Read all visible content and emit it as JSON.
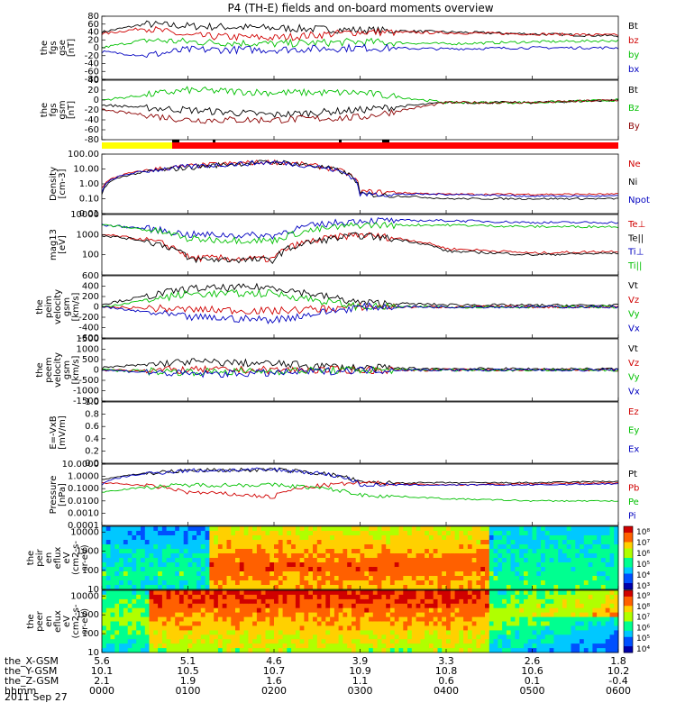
{
  "title": "P4 (TH-E) fields and on-board moments overview",
  "chart_data": [
    {
      "type": "line",
      "ylabel": [
        "the",
        "fgs",
        "gse",
        "[nT]"
      ],
      "ylim": [
        -80,
        80
      ],
      "yticks": [
        "80",
        "60",
        "40",
        "20",
        "0",
        "-20",
        "-40",
        "-60",
        "-80"
      ],
      "series": [
        {
          "name": "Bt",
          "color": "#000000",
          "x": [
            0,
            5,
            10,
            20,
            30,
            40,
            50,
            60
          ],
          "y": [
            40,
            60,
            55,
            50,
            45,
            40,
            35,
            30
          ]
        },
        {
          "name": "bz",
          "color": "#d00000",
          "x": [
            0,
            5,
            10,
            20,
            30,
            40,
            50,
            60
          ],
          "y": [
            35,
            50,
            30,
            25,
            40,
            38,
            35,
            32
          ]
        },
        {
          "name": "by",
          "color": "#00c000",
          "x": [
            0,
            5,
            10,
            20,
            30,
            40,
            50,
            60
          ],
          "y": [
            0,
            20,
            15,
            10,
            15,
            10,
            15,
            18
          ]
        },
        {
          "name": "bx",
          "color": "#0000c0",
          "x": [
            0,
            5,
            10,
            20,
            30,
            40,
            50,
            60
          ],
          "y": [
            -10,
            -20,
            -5,
            -5,
            0,
            -3,
            0,
            0
          ]
        }
      ]
    },
    {
      "type": "line",
      "ylabel": [
        "the",
        "fgs",
        "gsm",
        "[nT]"
      ],
      "ylim": [
        -80,
        40
      ],
      "yticks": [
        "40",
        "20",
        "0",
        "-20",
        "-40",
        "-60",
        "-80"
      ],
      "series": [
        {
          "name": "Bt",
          "color": "#000000",
          "x": [
            0,
            10,
            20,
            30,
            40,
            50,
            60
          ],
          "y": [
            -10,
            -20,
            -30,
            -20,
            -5,
            -5,
            0
          ]
        },
        {
          "name": "Bz",
          "color": "#00c000",
          "x": [
            0,
            10,
            20,
            30,
            40,
            50,
            60
          ],
          "y": [
            0,
            20,
            15,
            15,
            -5,
            -5,
            0
          ]
        },
        {
          "name": "By",
          "color": "#8b0000",
          "x": [
            0,
            10,
            20,
            30,
            40,
            50,
            60
          ],
          "y": [
            -20,
            -40,
            -40,
            -35,
            -5,
            -5,
            0
          ]
        }
      ]
    },
    {
      "type": "line",
      "ylabel": [
        "Density",
        "[cm-3]"
      ],
      "yscale": "log",
      "ylim": [
        0.01,
        100
      ],
      "yticks": [
        "100.00",
        "10.00",
        "1.00",
        "0.10",
        "0.01"
      ],
      "series": [
        {
          "name": "Ne",
          "color": "#d00000",
          "x": [
            0,
            10,
            20,
            30,
            40,
            50,
            60
          ],
          "y": [
            0.5,
            15,
            30,
            0.3,
            0.2,
            0.2,
            0.2
          ]
        },
        {
          "name": "Ni",
          "color": "#000000",
          "x": [
            0,
            10,
            20,
            30,
            40,
            50,
            60
          ],
          "y": [
            0.2,
            12,
            30,
            0.2,
            0.1,
            0.1,
            0.1
          ]
        },
        {
          "name": "Npot",
          "color": "#0000c0",
          "x": [
            0,
            10,
            20,
            30,
            40,
            50,
            60
          ],
          "y": [
            0.3,
            14,
            28,
            0.2,
            0.2,
            0.15,
            0.15
          ]
        }
      ]
    },
    {
      "type": "line",
      "ylabel": [
        "mag13",
        "[eV]"
      ],
      "yscale": "log",
      "ylim": [
        10,
        10000
      ],
      "yticks": [
        "10000",
        "1000",
        "100"
      ],
      "series": [
        {
          "name": "Te⊥",
          "color": "#d00000",
          "x": [
            0,
            10,
            20,
            30,
            40,
            50,
            60
          ],
          "y": [
            1000,
            70,
            60,
            1000,
            200,
            120,
            150
          ]
        },
        {
          "name": "Te||",
          "color": "#000000",
          "x": [
            0,
            10,
            20,
            30,
            40,
            50,
            60
          ],
          "y": [
            900,
            60,
            55,
            900,
            150,
            100,
            120
          ]
        },
        {
          "name": "Ti⊥",
          "color": "#0000c0",
          "x": [
            0,
            10,
            20,
            30,
            40,
            50,
            60
          ],
          "y": [
            3000,
            1000,
            900,
            5000,
            5000,
            4000,
            4000
          ]
        },
        {
          "name": "Ti||",
          "color": "#00c000",
          "x": [
            0,
            10,
            20,
            30,
            40,
            50,
            60
          ],
          "y": [
            3000,
            600,
            500,
            3000,
            3000,
            2500,
            2500
          ]
        }
      ]
    },
    {
      "type": "line",
      "ylabel": [
        "the",
        "peim",
        "velocity",
        "gsm",
        "[km/s]"
      ],
      "ylim": [
        -600,
        600
      ],
      "yticks": [
        "600",
        "400",
        "200",
        "0",
        "-200",
        "-400",
        "-600"
      ],
      "series": [
        {
          "name": "Vt",
          "color": "#000000",
          "x": [
            0,
            10,
            20,
            30,
            40,
            50,
            60
          ],
          "y": [
            50,
            350,
            380,
            80,
            40,
            30,
            30
          ]
        },
        {
          "name": "Vz",
          "color": "#d00000",
          "x": [
            0,
            10,
            20,
            30,
            40,
            50,
            60
          ],
          "y": [
            0,
            -50,
            -80,
            0,
            0,
            0,
            0
          ]
        },
        {
          "name": "Vy",
          "color": "#00c000",
          "x": [
            0,
            10,
            20,
            30,
            40,
            50,
            60
          ],
          "y": [
            0,
            250,
            260,
            0,
            0,
            0,
            0
          ]
        },
        {
          "name": "Vx",
          "color": "#0000c0",
          "x": [
            0,
            10,
            20,
            30,
            40,
            50,
            60
          ],
          "y": [
            0,
            -200,
            -250,
            0,
            0,
            0,
            0
          ]
        }
      ]
    },
    {
      "type": "line",
      "ylabel": [
        "the",
        "peem",
        "velocity",
        "gsm",
        "[km/s]"
      ],
      "ylim": [
        -1500,
        1500
      ],
      "yticks": [
        "1500",
        "1000",
        "500",
        "0",
        "-500",
        "-1000",
        "-1500"
      ],
      "series": [
        {
          "name": "Vt",
          "color": "#000000",
          "x": [
            0,
            10,
            20,
            30,
            40,
            50,
            60
          ],
          "y": [
            100,
            400,
            300,
            100,
            60,
            50,
            50
          ]
        },
        {
          "name": "Vz",
          "color": "#d00000",
          "x": [
            0,
            10,
            20,
            30,
            40,
            50,
            60
          ],
          "y": [
            0,
            0,
            0,
            0,
            0,
            0,
            0
          ]
        },
        {
          "name": "Vy",
          "color": "#00c000",
          "x": [
            0,
            10,
            20,
            30,
            40,
            50,
            60
          ],
          "y": [
            0,
            -100,
            -50,
            0,
            0,
            0,
            0
          ]
        },
        {
          "name": "Vx",
          "color": "#0000c0",
          "x": [
            0,
            10,
            20,
            30,
            40,
            50,
            60
          ],
          "y": [
            0,
            -200,
            -150,
            0,
            0,
            0,
            0
          ]
        }
      ]
    },
    {
      "type": "line",
      "ylabel": [
        "E=-VxB",
        "[mV/m]"
      ],
      "ylim": [
        0,
        1
      ],
      "yticks": [
        "1.0",
        "0.8",
        "0.6",
        "0.4",
        "0.2",
        "0.0"
      ],
      "series": [
        {
          "name": "Ez",
          "color": "#d00000"
        },
        {
          "name": "Ey",
          "color": "#00c000"
        },
        {
          "name": "Ex",
          "color": "#0000c0"
        }
      ]
    },
    {
      "type": "line",
      "ylabel": [
        "Pressure",
        "[nPa]"
      ],
      "yscale": "log",
      "ylim": [
        0.0001,
        10
      ],
      "yticks": [
        "10.0000",
        "1.0000",
        "0.1000",
        "0.0100",
        "0.0010",
        "0.0001"
      ],
      "series": [
        {
          "name": "Pt",
          "color": "#000000",
          "x": [
            0,
            10,
            20,
            30,
            40,
            50,
            60
          ],
          "y": [
            0.5,
            3,
            3.5,
            0.3,
            0.3,
            0.3,
            0.4
          ]
        },
        {
          "name": "Pb",
          "color": "#d00000",
          "x": [
            0,
            10,
            20,
            30,
            40,
            50,
            60
          ],
          "y": [
            0.3,
            0.05,
            0.02,
            0.3,
            0.2,
            0.25,
            0.3
          ]
        },
        {
          "name": "Pe",
          "color": "#00c000",
          "x": [
            0,
            10,
            20,
            30,
            40,
            50,
            60
          ],
          "y": [
            0.05,
            0.2,
            0.2,
            0.03,
            0.015,
            0.01,
            0.01
          ]
        },
        {
          "name": "Pi",
          "color": "#0000c0",
          "x": [
            0,
            10,
            20,
            30,
            40,
            50,
            60
          ],
          "y": [
            0.2,
            3,
            3.5,
            0.2,
            0.2,
            0.2,
            0.25
          ]
        }
      ]
    },
    {
      "type": "heatmap",
      "ylabel": [
        "the",
        "peir",
        "en",
        "eflux",
        "eV",
        "(cm2-s-",
        "sr-eV)"
      ],
      "yscale": "log",
      "ylim": [
        10,
        20000
      ],
      "yticks": [
        "10000",
        "1000",
        "100",
        "10"
      ],
      "colorbar_ticks": [
        "10⁸",
        "10⁷",
        "10⁶",
        "10⁵",
        "10⁴",
        "10³"
      ]
    },
    {
      "type": "heatmap",
      "ylabel": [
        "the",
        "peer",
        "en",
        "eflux",
        "eV",
        "(cm2-s-",
        "sr-eV)"
      ],
      "yscale": "log",
      "ylim": [
        10,
        20000
      ],
      "yticks": [
        "10000",
        "1000",
        "100",
        "10"
      ],
      "colorbar_ticks": [
        "10⁹",
        "10⁸",
        "10⁷",
        "10⁶",
        "10⁵",
        "10⁴"
      ]
    }
  ],
  "time_axis": {
    "rows": [
      {
        "label": "the_X-GSM",
        "values": [
          "5.6",
          "5.1",
          "4.6",
          "3.9",
          "3.3",
          "2.6",
          "1.8"
        ]
      },
      {
        "label": "the_Y-GSM",
        "values": [
          "10.1",
          "10.5",
          "10.7",
          "10.9",
          "10.8",
          "10.6",
          "10.2"
        ]
      },
      {
        "label": "the_Z-GSM",
        "values": [
          "2.1",
          "1.9",
          "1.6",
          "1.1",
          "0.6",
          "0.1",
          "-0.4"
        ]
      },
      {
        "label": "hhmm",
        "values": [
          "0000",
          "0100",
          "0200",
          "0300",
          "0400",
          "0500",
          "0600"
        ]
      }
    ],
    "date": "2011 Sep 27"
  },
  "colors": {
    "red": "#ff0000",
    "green": "#00c000",
    "blue": "#0000c0",
    "black": "#000000",
    "yellow": "#ffff00"
  }
}
